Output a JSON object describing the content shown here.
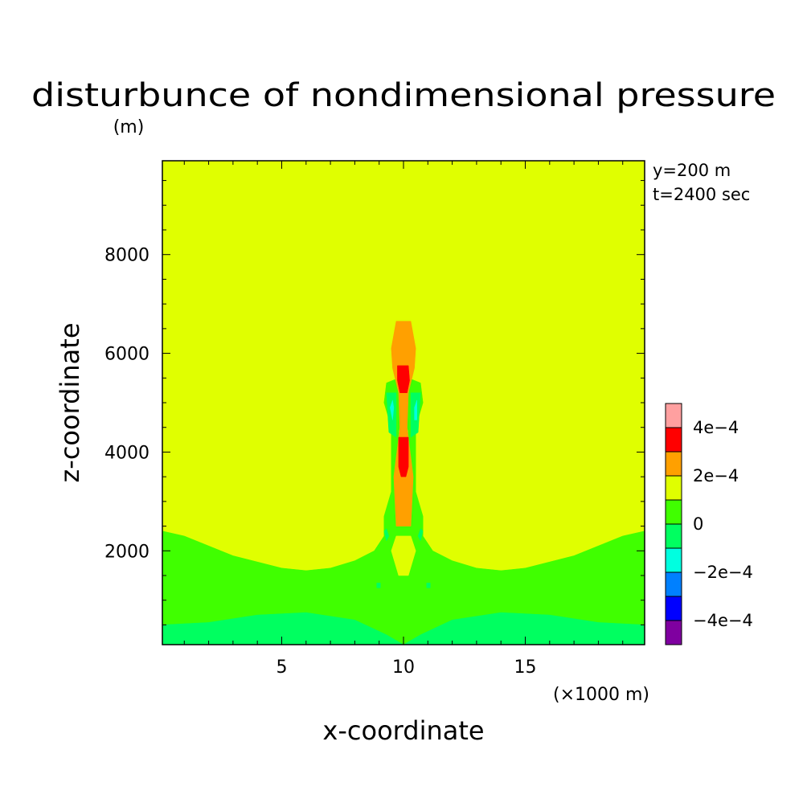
{
  "chart_data": {
    "type": "contour",
    "title": "disturbunce of nondimensional pressure",
    "ylabel": "z-coordinate",
    "yunit": "(m)",
    "xlabel": "x-coordinate",
    "xunit": "(×1000 m)",
    "annotation": [
      "y=200 m",
      "t=2400 sec"
    ],
    "xlim": [
      0.1,
      19.9
    ],
    "ylim": [
      100,
      9900
    ],
    "xticks": [
      5,
      10,
      15
    ],
    "xtick_labels": [
      "5",
      "10",
      "15"
    ],
    "yticks": [
      2000,
      4000,
      6000,
      8000
    ],
    "ytick_labels": [
      "2000",
      "4000",
      "6000",
      "8000"
    ],
    "colorbar": {
      "levels": [
        -0.0005,
        -0.0004,
        -0.0003,
        -0.0002,
        -0.0001,
        0,
        0.0001,
        0.0002,
        0.0003,
        0.0004,
        0.0005
      ],
      "tick_values": [
        -0.0004,
        -0.0002,
        0,
        0.0002,
        0.0004
      ],
      "tick_labels": [
        "−4e−4",
        "−2e−4",
        "0",
        "2e−4",
        "4e−4"
      ],
      "colors": [
        "#7f00a0",
        "#0000ff",
        "#0080ff",
        "#00ffe0",
        "#00ff60",
        "#40ff00",
        "#e0ff00",
        "#ffa000",
        "#ff0000",
        "#ffa0a0"
      ]
    },
    "regions": [
      {
        "level": "0.0001 to 0.0002",
        "color": "#e0ff00",
        "description": "background"
      },
      {
        "level": "0 to 0.0001",
        "color": "#40ff00",
        "polygon": [
          [
            0.1,
            2400
          ],
          [
            1,
            2300
          ],
          [
            3,
            1900
          ],
          [
            5,
            1650
          ],
          [
            6,
            1600
          ],
          [
            7,
            1650
          ],
          [
            8,
            1800
          ],
          [
            8.8,
            2000
          ],
          [
            9.2,
            2300
          ],
          [
            9.2,
            2700
          ],
          [
            9.5,
            3200
          ],
          [
            9.5,
            4500
          ],
          [
            9.2,
            5000
          ],
          [
            9.3,
            5400
          ],
          [
            9.8,
            5500
          ],
          [
            9.9,
            4800
          ],
          [
            9.9,
            4600
          ],
          [
            9.8,
            4400
          ],
          [
            10.2,
            4400
          ],
          [
            10.1,
            4600
          ],
          [
            10.1,
            4800
          ],
          [
            10.2,
            5500
          ],
          [
            10.7,
            5400
          ],
          [
            10.8,
            5000
          ],
          [
            10.5,
            4500
          ],
          [
            10.5,
            3200
          ],
          [
            10.8,
            2700
          ],
          [
            10.8,
            2300
          ],
          [
            11.2,
            2000
          ],
          [
            12,
            1800
          ],
          [
            13,
            1650
          ],
          [
            14,
            1600
          ],
          [
            15,
            1650
          ],
          [
            17,
            1900
          ],
          [
            19,
            2300
          ],
          [
            19.9,
            2400
          ],
          [
            19.9,
            100
          ],
          [
            0.1,
            100
          ]
        ]
      },
      {
        "level": "-0.0001 to 0",
        "color": "#00ff60",
        "polygon": [
          [
            0.1,
            500
          ],
          [
            2,
            550
          ],
          [
            4,
            700
          ],
          [
            6,
            750
          ],
          [
            8,
            600
          ],
          [
            9.3,
            300
          ],
          [
            10,
            100
          ],
          [
            10.7,
            300
          ],
          [
            12,
            600
          ],
          [
            14,
            750
          ],
          [
            16,
            700
          ],
          [
            18,
            550
          ],
          [
            19.9,
            500
          ],
          [
            19.9,
            100
          ],
          [
            0.1,
            100
          ]
        ]
      },
      {
        "level": "-0.0001 to 0",
        "color": "#00ff60",
        "polygon": [
          [
            9.2,
            2400
          ],
          [
            9.3,
            2200
          ],
          [
            9.4,
            2300
          ],
          [
            9.3,
            2450
          ]
        ]
      },
      {
        "level": "-0.0001 to 0",
        "color": "#00ff60",
        "polygon": [
          [
            10.6,
            2300
          ],
          [
            10.7,
            2200
          ],
          [
            10.8,
            2400
          ],
          [
            10.7,
            2450
          ]
        ]
      },
      {
        "level": "-0.0001 to 0",
        "color": "#00ff60",
        "polygon": [
          [
            9.3,
            5200
          ],
          [
            9.4,
            4400
          ],
          [
            9.7,
            4300
          ],
          [
            9.7,
            5200
          ]
        ]
      },
      {
        "level": "-0.0001 to 0",
        "color": "#00ff60",
        "polygon": [
          [
            10.3,
            5200
          ],
          [
            10.3,
            4300
          ],
          [
            10.6,
            4400
          ],
          [
            10.7,
            5200
          ]
        ]
      },
      {
        "level": "-0.0002 to -0.0001",
        "color": "#00ffe0",
        "polygon": [
          [
            9.45,
            4900
          ],
          [
            9.55,
            4650
          ],
          [
            9.6,
            4900
          ],
          [
            9.55,
            5050
          ]
        ]
      },
      {
        "level": "-0.0002 to -0.0001",
        "color": "#00ffe0",
        "polygon": [
          [
            10.45,
            4900
          ],
          [
            10.45,
            4650
          ],
          [
            10.55,
            4650
          ],
          [
            10.55,
            5050
          ]
        ]
      },
      {
        "level": "0.0001 to 0.0002",
        "color": "#e0ff00",
        "polygon": [
          [
            9.5,
            2000
          ],
          [
            9.8,
            1500
          ],
          [
            10.2,
            1500
          ],
          [
            10.5,
            2000
          ],
          [
            10.3,
            2300
          ],
          [
            9.7,
            2300
          ]
        ]
      },
      {
        "level": "0.0002 to 0.0003",
        "color": "#ffa000",
        "polygon": [
          [
            9.7,
            6650
          ],
          [
            10.3,
            6650
          ],
          [
            10.5,
            6100
          ],
          [
            10.45,
            5700
          ],
          [
            10.2,
            5200
          ],
          [
            10.15,
            4500
          ],
          [
            10.4,
            3500
          ],
          [
            10.3,
            2500
          ],
          [
            9.7,
            2500
          ],
          [
            9.6,
            3500
          ],
          [
            9.85,
            4500
          ],
          [
            9.8,
            5200
          ],
          [
            9.55,
            5700
          ],
          [
            9.5,
            6100
          ]
        ]
      },
      {
        "level": "0.0003 to 0.0004",
        "color": "#ff0000",
        "polygon": [
          [
            9.75,
            5750
          ],
          [
            10.2,
            5750
          ],
          [
            10.25,
            5450
          ],
          [
            10.15,
            5200
          ],
          [
            9.85,
            5200
          ],
          [
            9.75,
            5450
          ]
        ]
      },
      {
        "level": "0.0003 to 0.0004",
        "color": "#ff0000",
        "polygon": [
          [
            9.8,
            4300
          ],
          [
            10.2,
            4300
          ],
          [
            10.2,
            3700
          ],
          [
            10.1,
            3500
          ],
          [
            9.9,
            3500
          ],
          [
            9.8,
            3700
          ]
        ]
      },
      {
        "level": "-0.0001 to 0",
        "color": "#00ff60",
        "polygon": [
          [
            8.9,
            1250
          ],
          [
            9.05,
            1250
          ],
          [
            9.05,
            1350
          ],
          [
            8.9,
            1350
          ]
        ]
      },
      {
        "level": "-0.0001 to 0",
        "color": "#00ff60",
        "polygon": [
          [
            10.95,
            1250
          ],
          [
            11.1,
            1250
          ],
          [
            11.1,
            1350
          ],
          [
            10.95,
            1350
          ]
        ]
      }
    ]
  }
}
